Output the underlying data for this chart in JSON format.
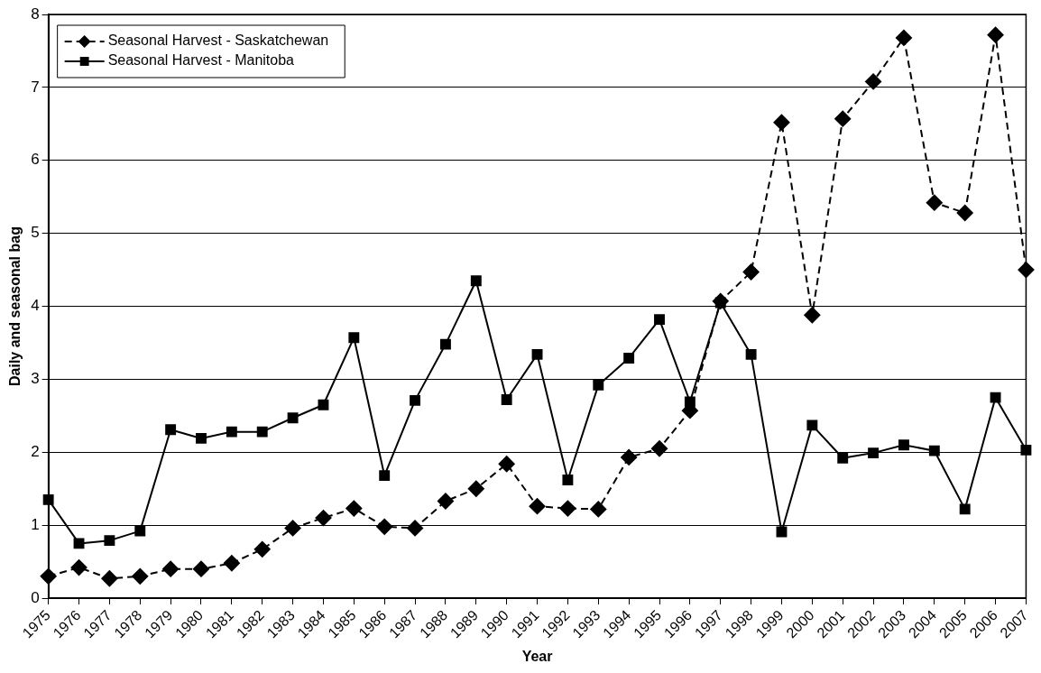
{
  "chart_data": {
    "type": "line",
    "xlabel": "Year",
    "ylabel": "Daily and seasonal bag",
    "categories": [
      "1975",
      "1976",
      "1977",
      "1978",
      "1979",
      "1980",
      "1981",
      "1982",
      "1983",
      "1984",
      "1985",
      "1986",
      "1987",
      "1988",
      "1989",
      "1990",
      "1991",
      "1992",
      "1993",
      "1994",
      "1995",
      "1996",
      "1997",
      "1998",
      "1999",
      "2000",
      "2001",
      "2002",
      "2003",
      "2004",
      "2005",
      "2006",
      "2007"
    ],
    "series": [
      {
        "name": "Seasonal Harvest - Saskatchewan",
        "color": "#000000",
        "marker": "diamond",
        "line_style": "dashed",
        "values": [
          0.3,
          0.42,
          0.27,
          0.3,
          0.4,
          0.4,
          0.48,
          0.67,
          0.96,
          1.1,
          1.23,
          0.98,
          0.96,
          1.33,
          1.5,
          1.84,
          1.26,
          1.23,
          1.22,
          1.93,
          2.05,
          2.57,
          4.07,
          4.47,
          6.52,
          3.88,
          6.57,
          7.08,
          7.68,
          5.42,
          5.28,
          7.72,
          4.5
        ]
      },
      {
        "name": "Seasonal Harvest - Manitoba",
        "color": "#000000",
        "marker": "square",
        "line_style": "solid",
        "values": [
          1.35,
          0.75,
          0.79,
          0.92,
          2.31,
          2.19,
          2.28,
          2.28,
          2.47,
          2.65,
          3.57,
          1.68,
          2.71,
          3.48,
          4.35,
          2.72,
          3.34,
          1.62,
          2.92,
          3.29,
          3.82,
          2.69,
          4.05,
          3.34,
          0.91,
          2.37,
          1.92,
          1.99,
          2.1,
          2.02,
          1.22,
          2.75,
          2.03
        ]
      }
    ],
    "ylim": [
      0,
      8
    ],
    "yticks": [
      0,
      1,
      2,
      3,
      4,
      5,
      6,
      7,
      8
    ],
    "grid": "y",
    "legend": "top left"
  }
}
